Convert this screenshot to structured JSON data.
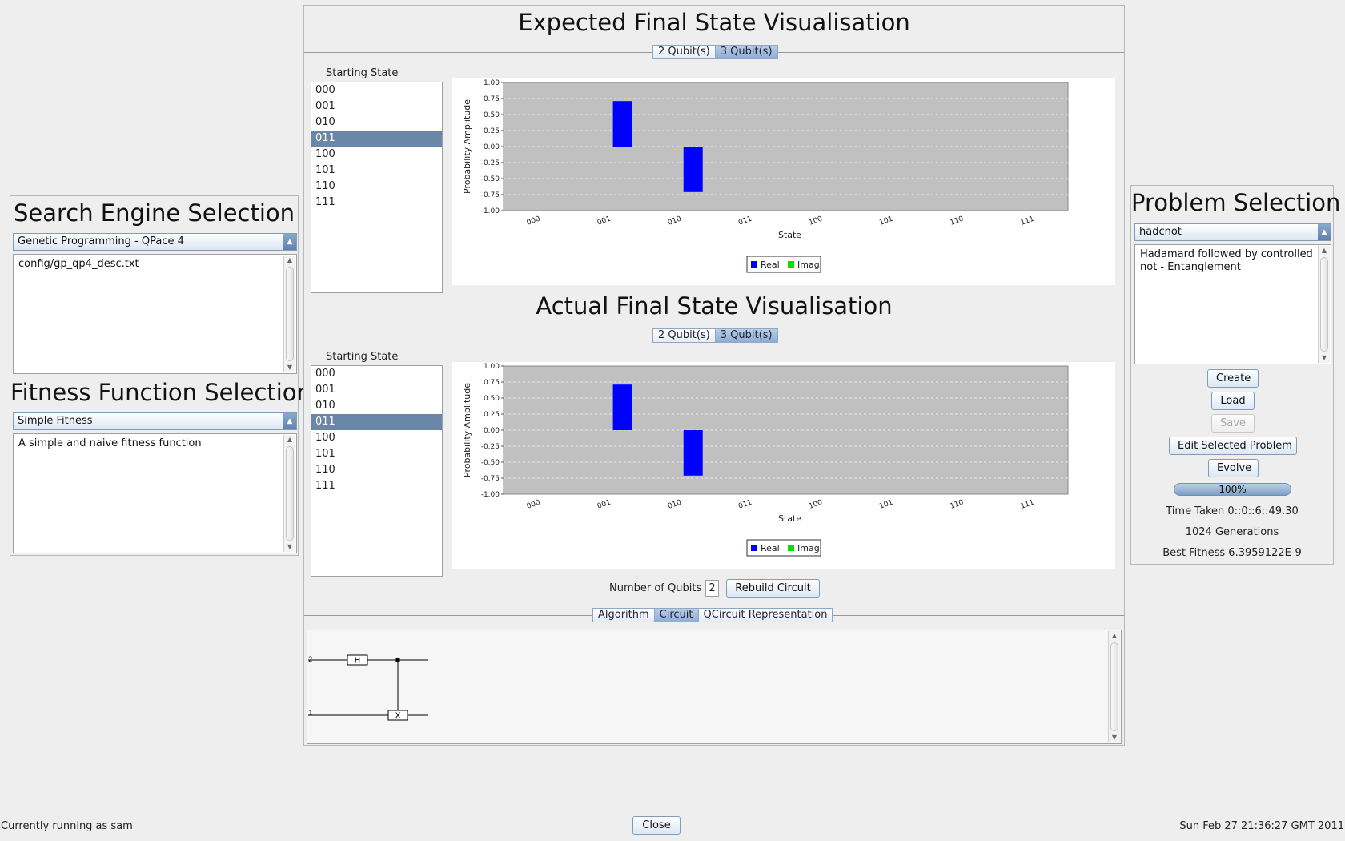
{
  "left": {
    "search_title": "Search Engine Selection",
    "search_engine": "Genetic Programming - QPace 4",
    "search_desc": "config/gp_qp4_desc.txt",
    "fitness_title": "Fitness Function Selection",
    "fitness_function": "Simple Fitness",
    "fitness_desc": "A simple and naive fitness function"
  },
  "center": {
    "expected_title": "Expected Final State Visualisation",
    "actual_title": "Actual Final State Visualisation",
    "qubit_tabs": [
      "2 Qubit(s)",
      "3 Qubit(s)"
    ],
    "selected_qubit_tab": 1,
    "starting_state_label": "Starting State",
    "states": [
      "000",
      "001",
      "010",
      "011",
      "100",
      "101",
      "110",
      "111"
    ],
    "selected_state": "011",
    "num_qubits_label": "Number of Qubits",
    "num_qubits_value": "2",
    "rebuild_label": "Rebuild Circuit",
    "bottom_tabs": [
      "Algorithm",
      "Circuit",
      "QCircuit Representation"
    ],
    "selected_bottom_tab": 1
  },
  "circuit": {
    "wire_labels": [
      "2",
      "1"
    ],
    "gate_h": "H",
    "gate_x": "X"
  },
  "chart_data": [
    {
      "type": "bar",
      "name": "Expected Final State",
      "categories": [
        "000",
        "001",
        "010",
        "011",
        "100",
        "101",
        "110",
        "111"
      ],
      "series": [
        {
          "name": "Real",
          "values": [
            0,
            0.71,
            -0.71,
            0,
            0,
            0,
            0,
            0
          ],
          "color": "#0000ff"
        },
        {
          "name": "Imag",
          "values": [
            0,
            0,
            0,
            0,
            0,
            0,
            0,
            0
          ],
          "color": "#00e000"
        }
      ],
      "xlabel": "State",
      "ylabel": "Probability Amplitude",
      "ylim": [
        -1.0,
        1.0
      ],
      "yticks": [
        "1.00",
        "0.75",
        "0.50",
        "0.25",
        "0.00",
        "-0.25",
        "-0.50",
        "-0.75",
        "-1.00"
      ],
      "grid": true,
      "legend": "bottom"
    },
    {
      "type": "bar",
      "name": "Actual Final State",
      "categories": [
        "000",
        "001",
        "010",
        "011",
        "100",
        "101",
        "110",
        "111"
      ],
      "series": [
        {
          "name": "Real",
          "values": [
            0,
            0.71,
            -0.71,
            0,
            0,
            0,
            0,
            0
          ],
          "color": "#0000ff"
        },
        {
          "name": "Imag",
          "values": [
            0,
            0,
            0,
            0,
            0,
            0,
            0,
            0
          ],
          "color": "#00e000"
        }
      ],
      "xlabel": "State",
      "ylabel": "Probability Amplitude",
      "ylim": [
        -1.0,
        1.0
      ],
      "yticks": [
        "1.00",
        "0.75",
        "0.50",
        "0.25",
        "0.00",
        "-0.25",
        "-0.50",
        "-0.75",
        "-1.00"
      ],
      "grid": true,
      "legend": "bottom"
    }
  ],
  "right": {
    "title": "Problem Selection",
    "problem": "hadcnot",
    "problem_desc": "Hadamard followed by controlled not - Entanglement",
    "create_label": "Create",
    "load_label": "Load",
    "save_label": "Save",
    "edit_label": "Edit Selected Problem",
    "evolve_label": "Evolve",
    "progress_text": "100%",
    "progress_value": 1.0,
    "time_taken": "Time Taken 0::0::6::49.30",
    "generations": "1024 Generations",
    "best_fitness": "Best Fitness 6.3959122E-9"
  },
  "footer": {
    "running_as": "Currently running as sam",
    "close_label": "Close",
    "datetime": "Sun Feb 27 21:36:27 GMT 2011"
  }
}
